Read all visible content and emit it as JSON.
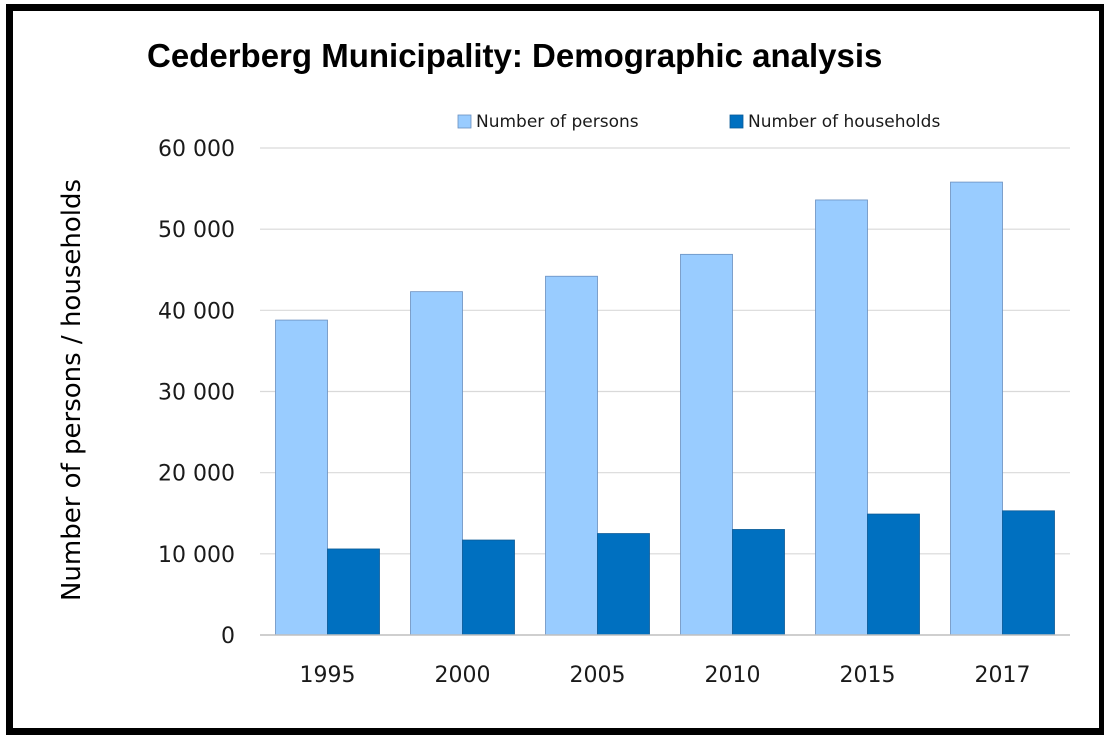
{
  "chart_data": {
    "type": "bar",
    "title": "Cederberg Municipality: Demographic analysis",
    "ylabel": "Number of persons / households",
    "xlabel": "",
    "categories": [
      "1995",
      "2000",
      "2005",
      "2010",
      "2015",
      "2017"
    ],
    "series": [
      {
        "name": "Number of persons",
        "color": "#99ccff",
        "values": [
          38800,
          42300,
          44200,
          46900,
          53600,
          55800
        ]
      },
      {
        "name": "Number of households",
        "color": "#0070c0",
        "values": [
          10600,
          11700,
          12500,
          13000,
          14900,
          15300
        ]
      }
    ],
    "ylim": [
      0,
      60000
    ],
    "yticks": [
      0,
      10000,
      20000,
      30000,
      40000,
      50000,
      60000
    ],
    "ytick_labels": [
      "0",
      "10 000",
      "20 000",
      "30 000",
      "40 000",
      "50 000",
      "60 000"
    ],
    "grid": true,
    "legend_position": "top-right"
  }
}
